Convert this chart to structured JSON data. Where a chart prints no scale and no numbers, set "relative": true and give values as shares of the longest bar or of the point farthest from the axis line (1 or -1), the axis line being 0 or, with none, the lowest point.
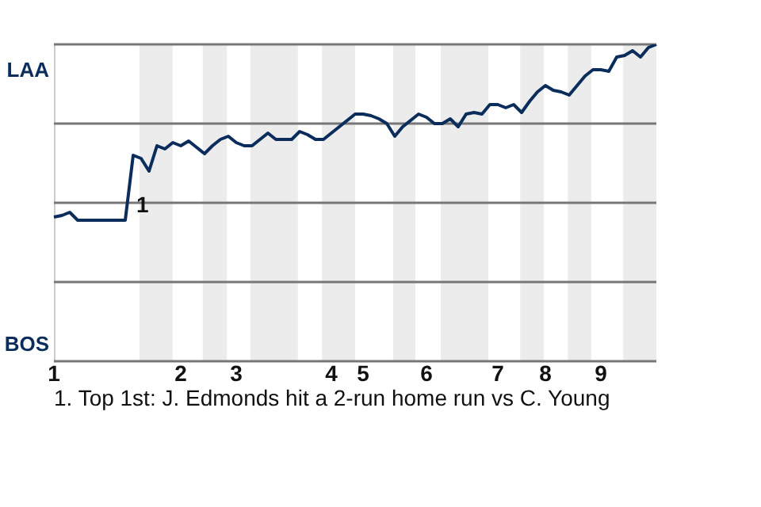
{
  "chart_data": {
    "type": "line",
    "relative": true,
    "categories": [
      "1",
      null,
      null,
      null,
      null,
      null,
      null,
      null,
      null,
      null,
      null,
      null,
      null,
      null,
      null,
      null,
      "2",
      null,
      null,
      null,
      null,
      null,
      null,
      "3",
      null,
      null,
      null,
      null,
      null,
      null,
      null,
      null,
      null,
      null,
      null,
      "4",
      null,
      null,
      null,
      "5",
      null,
      null,
      null,
      null,
      null,
      null,
      null,
      "6",
      null,
      null,
      null,
      null,
      null,
      null,
      null,
      null,
      "7",
      null,
      null,
      null,
      null,
      null,
      "8",
      null,
      null,
      null,
      null,
      null,
      null,
      "9",
      null,
      null,
      null,
      null,
      null,
      null,
      null
    ],
    "legend": false,
    "marker": "none",
    "line_style": "solid",
    "series": [
      {
        "color": "#0b2d5b",
        "values": [
          0.455,
          0.46,
          0.47,
          0.445,
          0.445,
          0.445,
          0.445,
          0.445,
          0.445,
          0.445,
          0.65,
          0.64,
          0.6,
          0.68,
          0.67,
          0.69,
          0.68,
          0.695,
          0.675,
          0.655,
          0.68,
          0.7,
          0.71,
          0.69,
          0.68,
          0.68,
          0.7,
          0.72,
          0.7,
          0.7,
          0.7,
          0.725,
          0.715,
          0.7,
          0.7,
          0.72,
          0.74,
          0.76,
          0.78,
          0.78,
          0.775,
          0.765,
          0.75,
          0.71,
          0.74,
          0.76,
          0.78,
          0.77,
          0.75,
          0.75,
          0.765,
          0.74,
          0.78,
          0.785,
          0.78,
          0.81,
          0.81,
          0.8,
          0.81,
          0.785,
          0.82,
          0.85,
          0.87,
          0.855,
          0.85,
          0.84,
          0.87,
          0.9,
          0.92,
          0.92,
          0.915,
          0.96,
          0.965,
          0.98,
          0.96,
          0.99,
          1.0
        ]
      }
    ],
    "ref_lines": [
      {
        "axis": "y",
        "value": 1,
        "label": "LAA",
        "color": "#777777"
      },
      {
        "axis": "y",
        "value": 0.75,
        "color": "#777777"
      },
      {
        "axis": "y",
        "value": 0.5,
        "color": "#777777"
      },
      {
        "axis": "y",
        "value": 0.25,
        "color": "#777777"
      },
      {
        "axis": "y",
        "value": 0,
        "label": "BOS",
        "color": "#777777"
      }
    ],
    "annotations": [
      {
        "text": "1",
        "y": 0.49
      },
      "1. Top 1st: J. Edmonds hit a 2-run home run vs C. Young"
    ]
  }
}
